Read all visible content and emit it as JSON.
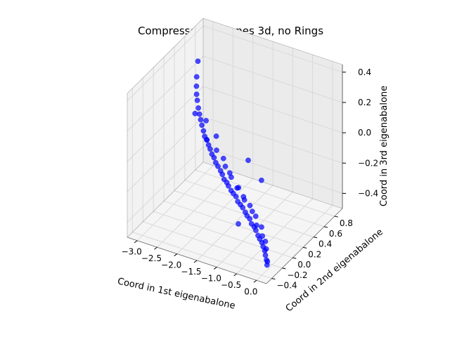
{
  "chart_data": {
    "type": "scatter",
    "projection": "3d",
    "title": "Compressed abalones 3d, no Rings",
    "xlabel": "Coord in 1st eigenabalone",
    "ylabel": "Coord in 2nd eigenabalone",
    "zlabel": "Coord in 3rd eigenabalone",
    "xlim": [
      -3.25,
      0.25
    ],
    "ylim": [
      -0.5,
      0.95
    ],
    "zlim": [
      -0.5,
      0.45
    ],
    "xticks": [
      "−3.0",
      "−2.5",
      "−2.0",
      "−1.5",
      "−1.0",
      "−0.5",
      "0.0"
    ],
    "yticks": [
      "−0.4",
      "−0.2",
      "0.0",
      "0.2",
      "0.4",
      "0.6",
      "0.8"
    ],
    "zticks": [
      "−0.4",
      "−0.2",
      "0.0",
      "0.2",
      "0.4"
    ],
    "grid": true,
    "marker_color": "#0000ff",
    "x": [
      -3.08,
      -2.98,
      -2.92,
      -2.85,
      -2.78,
      -2.7,
      -2.62,
      -2.55,
      -2.48,
      -2.4,
      -2.33,
      -2.25,
      -2.18,
      -2.1,
      -2.03,
      -1.95,
      -1.88,
      -1.8,
      -1.72,
      -1.65,
      -1.58,
      -1.5,
      -1.43,
      -1.35,
      -1.28,
      -1.2,
      -1.13,
      -1.05,
      -0.98,
      -0.9,
      -0.83,
      -0.75,
      -0.68,
      -0.6,
      -0.53,
      -0.45,
      -0.38,
      -0.3,
      -0.23,
      -0.15,
      -0.08,
      0.0,
      0.08,
      -2.6,
      -2.2,
      -1.9,
      -1.6,
      -1.4,
      -1.2,
      -1.0,
      -0.8,
      -0.6,
      -0.4,
      -0.2,
      -2.4,
      -2.0,
      -1.7,
      -1.45,
      -1.15,
      -0.95,
      -0.7,
      -0.5,
      -0.3,
      -0.1,
      0.05,
      -1.0,
      -0.6,
      -1.3
    ],
    "y": [
      0.72,
      0.62,
      0.57,
      0.52,
      0.48,
      0.44,
      0.4,
      0.37,
      0.34,
      0.31,
      0.28,
      0.26,
      0.24,
      0.21,
      0.19,
      0.17,
      0.15,
      0.13,
      0.12,
      0.1,
      0.08,
      0.07,
      0.05,
      0.04,
      0.03,
      0.02,
      0.0,
      -0.01,
      -0.02,
      -0.03,
      -0.05,
      -0.06,
      -0.08,
      -0.09,
      -0.11,
      -0.13,
      -0.15,
      -0.17,
      -0.2,
      -0.23,
      -0.27,
      -0.31,
      -0.36,
      0.3,
      0.22,
      0.18,
      0.12,
      0.08,
      0.04,
      0.01,
      -0.02,
      -0.06,
      -0.1,
      -0.18,
      0.36,
      0.25,
      0.16,
      0.09,
      0.03,
      -0.01,
      -0.05,
      -0.12,
      -0.16,
      -0.24,
      -0.33,
      0.1,
      0.05,
      0.14
    ],
    "z": [
      0.26,
      0.2,
      0.16,
      0.13,
      0.11,
      0.08,
      0.06,
      0.04,
      0.02,
      0.0,
      -0.02,
      -0.03,
      -0.05,
      -0.06,
      -0.08,
      -0.09,
      -0.11,
      -0.12,
      -0.14,
      -0.15,
      -0.17,
      -0.18,
      -0.19,
      -0.21,
      -0.22,
      -0.23,
      -0.25,
      -0.26,
      -0.27,
      -0.29,
      -0.3,
      -0.31,
      -0.33,
      -0.34,
      -0.35,
      -0.37,
      -0.38,
      -0.39,
      -0.4,
      -0.41,
      -0.42,
      -0.43,
      -0.44,
      0.1,
      -0.01,
      -0.04,
      -0.1,
      -0.14,
      -0.18,
      -0.21,
      -0.24,
      -0.28,
      -0.32,
      -0.37,
      0.05,
      0.02,
      -0.07,
      -0.12,
      -0.17,
      -0.22,
      -0.26,
      -0.31,
      -0.35,
      -0.39,
      -0.43,
      0.0,
      -0.08,
      -0.46
    ]
  }
}
